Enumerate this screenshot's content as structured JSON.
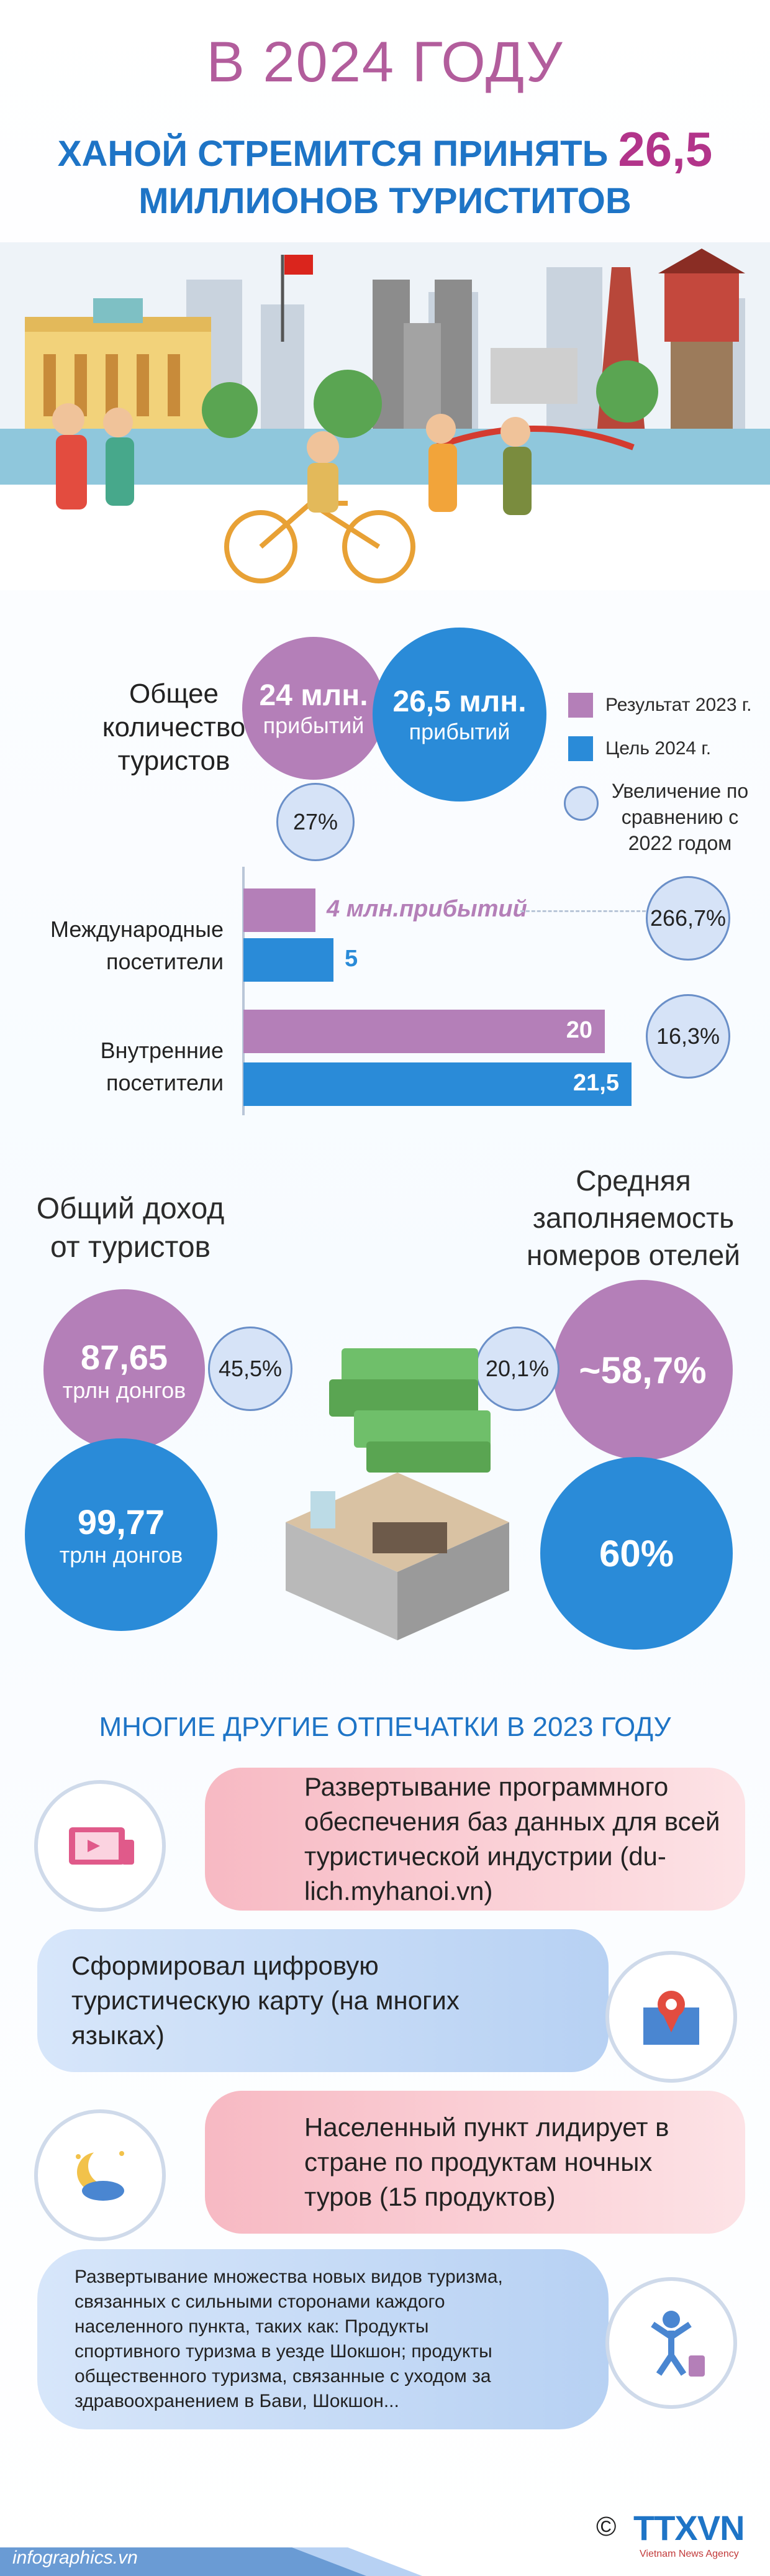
{
  "header": {
    "line1": "В 2024 ГОДУ",
    "line2_text": "ХАНОЙ СТРЕМИТСЯ ПРИНЯТЬ",
    "line2_number": "26,5",
    "line3": "МИЛЛИОНОВ ТУРИСТИТОВ"
  },
  "total_visitors": {
    "label": "Общее количество туристов",
    "result_2023": {
      "value": "24 млн.",
      "unit": "прибытий"
    },
    "target_2024": {
      "value": "26,5 млн.",
      "unit": "прибытий"
    },
    "increase": "27%"
  },
  "legend": {
    "result": "Результат 2023 г.",
    "target": "Цель 2024 г.",
    "increase": "Увеличение по сравнению с 2022 годом",
    "colors": {
      "result": "#b47fb8",
      "target": "#2a8bd8",
      "increase": "#d6e3f7"
    }
  },
  "chart_data": {
    "type": "bar",
    "categories": [
      "Международные посетители",
      "Внутренние посетители"
    ],
    "series": [
      {
        "values": [
          4,
          20
        ],
        "labels": [
          "4 млн.прибытий",
          "20"
        ]
      },
      {
        "values": [
          5,
          21.5
        ],
        "labels": [
          "5",
          "21,5"
        ]
      }
    ],
    "increase_labels": [
      "266,7%",
      "16,3%"
    ],
    "xlim": [
      0,
      22
    ]
  },
  "revenue": {
    "label": "Общий доход от туристов",
    "result_2023": {
      "value": "87,65",
      "unit": "трлн донгов"
    },
    "target_2024": {
      "value": "99,77",
      "unit": "трлн донгов"
    },
    "increase": "45,5%"
  },
  "occupancy": {
    "label": "Средняя заполняемость номеров отелей",
    "result_2023": "~58,7%",
    "target_2024": "60%",
    "increase": "20,1%"
  },
  "imprints": {
    "title": "МНОГИЕ ДРУГИЕ ОТПЕЧАТКИ В 2023 ГОДУ",
    "items": [
      {
        "text": "Развертывание программного обеспечения баз данных для всей туристической индустрии (du-lich.myhanoi.vn)",
        "icon": "devices-icon"
      },
      {
        "text": "Сформировал цифровую туристическую карту (на многих языках)",
        "icon": "map-pin-icon"
      },
      {
        "text": "Населенный пункт лидирует в стране по продуктам ночных туров (15 продуктов)",
        "icon": "moon-icon"
      },
      {
        "text": "Развертывание множества новых видов туризма, связанных с сильными сторонами каждого населенного пункта, таких как: Продукты спортивного туризма в уезде Шокшон; продукты общественного туризма, связанные с уходом за здравоохранением в Бави, Шокшон...",
        "icon": "sports-icon"
      }
    ]
  },
  "footer": {
    "site": "infographics.vn",
    "copyright": "©",
    "logo": "TTXVN",
    "agency": "Vietnam News Agency"
  }
}
